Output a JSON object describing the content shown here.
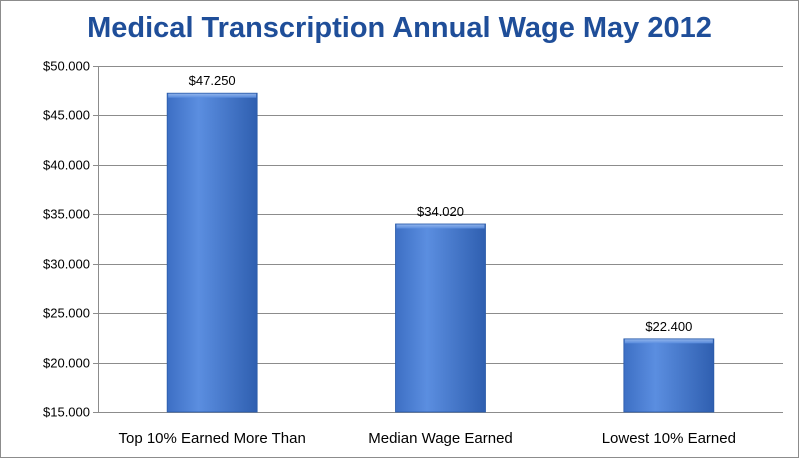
{
  "chart_data": {
    "type": "bar",
    "title": "Medical Transcription Annual Wage May 2012",
    "categories": [
      "Top 10% Earned More Than",
      "Median Wage Earned",
      "Lowest 10% Earned"
    ],
    "values": [
      47250,
      34020,
      22400
    ],
    "data_labels": [
      "$47.250",
      "$34.020",
      "$22.400"
    ],
    "ylim": [
      15000,
      50000
    ],
    "yticks": [
      15000,
      20000,
      25000,
      30000,
      35000,
      40000,
      45000,
      50000
    ],
    "ytick_labels": [
      "$15.000",
      "$20.000",
      "$25.000",
      "$30.000",
      "$35.000",
      "$40.000",
      "$45.000",
      "$50.000"
    ],
    "xlabel": "",
    "ylabel": "",
    "grid": true,
    "legend": "none"
  },
  "colors": {
    "title": "#1f4e99",
    "bar_light": "#6f9ee6",
    "bar_mid": "#4a7fd4",
    "bar_dark": "#2a5aa8",
    "grid": "#8c8c8c"
  }
}
